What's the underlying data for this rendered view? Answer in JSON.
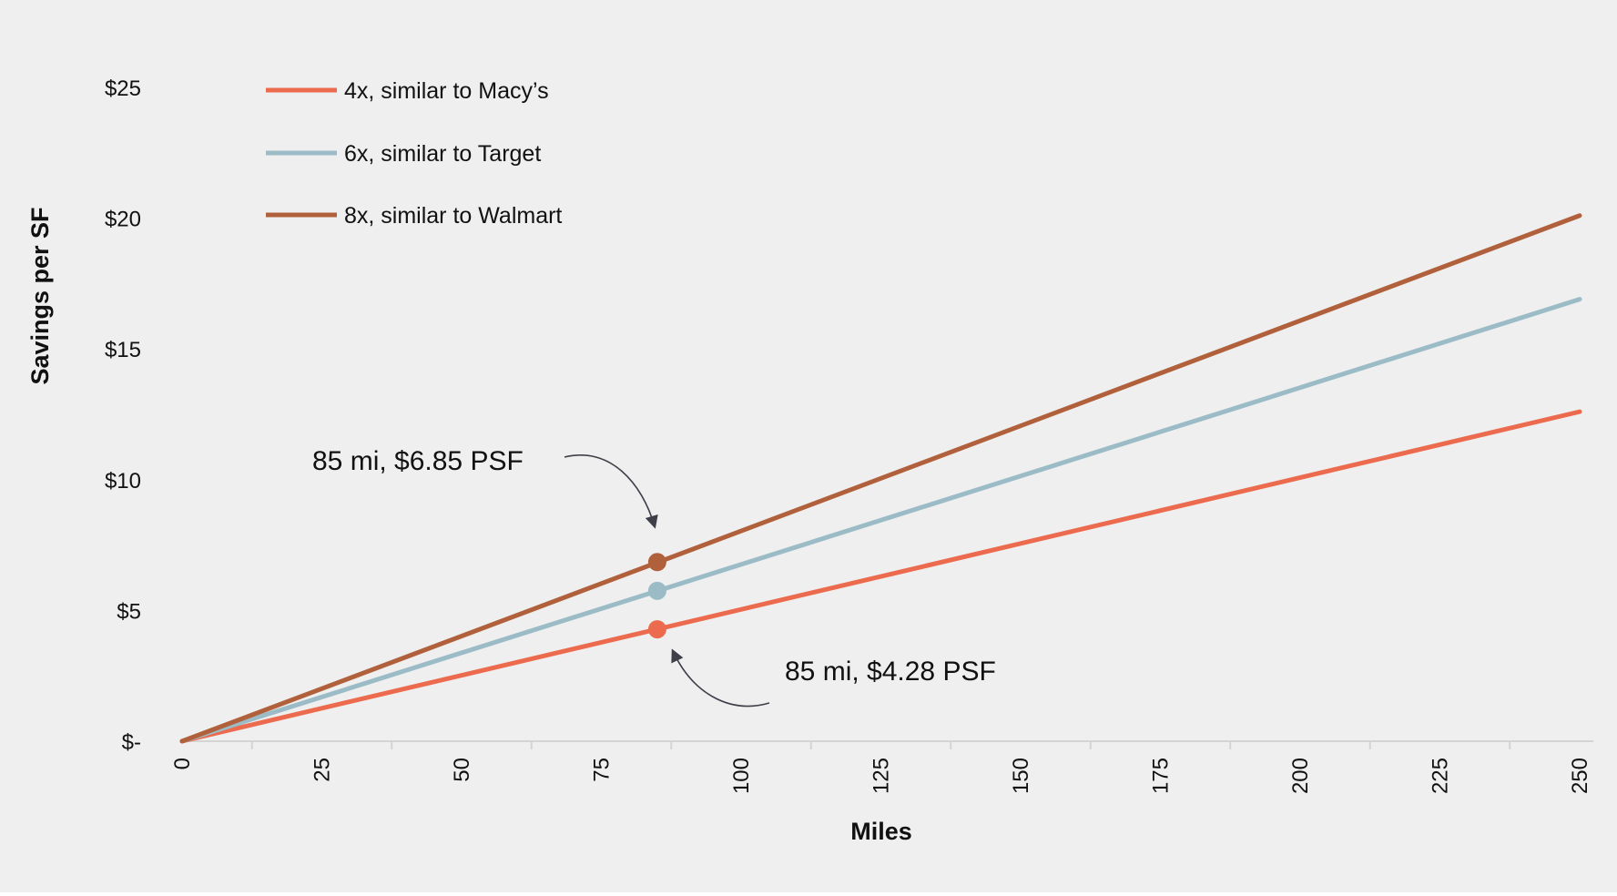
{
  "chart_data": {
    "type": "line",
    "xlabel": "Miles",
    "ylabel": "Savings per SF",
    "xlim": [
      0,
      250
    ],
    "ylim": [
      0,
      25
    ],
    "x_ticks": [
      "0",
      "25",
      "50",
      "75",
      "100",
      "125",
      "150",
      "175",
      "200",
      "225",
      "250"
    ],
    "y_ticks": [
      "$-",
      "$5",
      "$10",
      "$15",
      "$20",
      "$25"
    ],
    "grid": false,
    "legend_position": "top-left",
    "series": [
      {
        "name": "4x, similar to  Macy’s",
        "color": "#ec6a4d",
        "x": [
          0,
          250
        ],
        "values": [
          0,
          12.6
        ]
      },
      {
        "name": "6x, similar to Target",
        "color": "#9bbcc6",
        "x": [
          0,
          250
        ],
        "values": [
          0,
          16.9
        ]
      },
      {
        "name": "8x, similar to Walmart",
        "color": "#b1603c",
        "x": [
          0,
          250
        ],
        "values": [
          0,
          20.1
        ]
      }
    ],
    "markers": [
      {
        "series": 2,
        "x": 85,
        "y": 6.85
      },
      {
        "series": 1,
        "x": 85,
        "y": 5.75
      },
      {
        "series": 0,
        "x": 85,
        "y": 4.28
      }
    ],
    "annotations": [
      {
        "text": "85 mi,  $6.85 PSF",
        "x": 85,
        "y": 6.85
      },
      {
        "text": "85 mi,  $4.28 PSF",
        "x": 85,
        "y": 4.28
      }
    ]
  }
}
